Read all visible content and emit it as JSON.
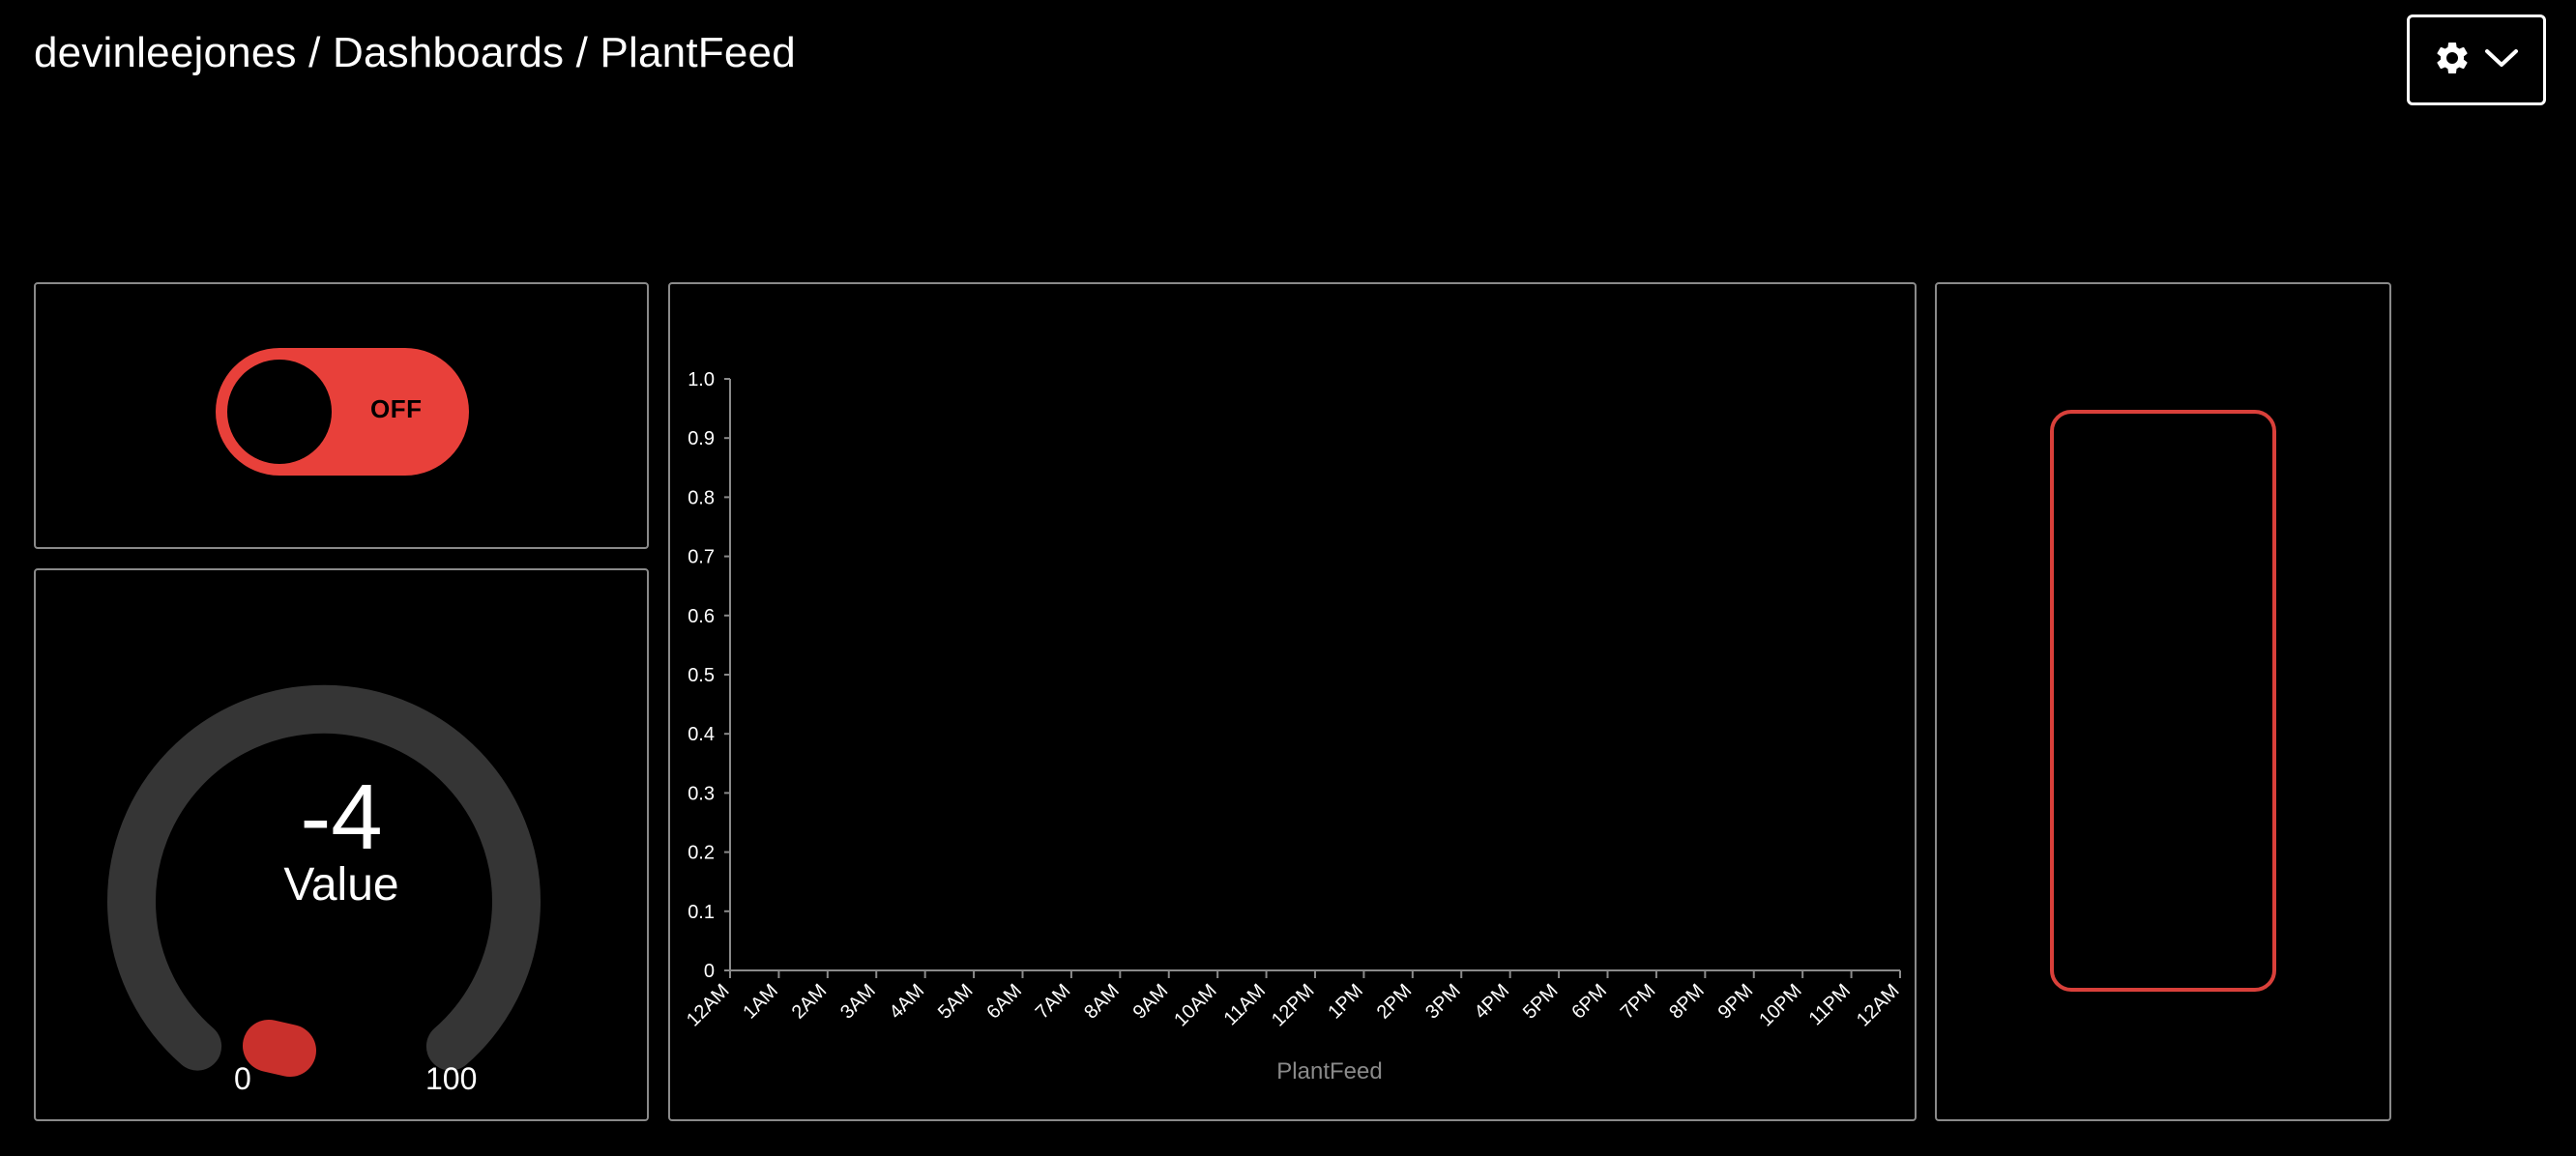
{
  "header": {
    "breadcrumb": "devinleejones / Dashboards / PlantFeed",
    "settings_icon": "gear-icon",
    "dropdown_icon": "chevron-down-icon"
  },
  "toggle": {
    "state_label": "OFF",
    "color": "#e8403a"
  },
  "gauge": {
    "value": "-4",
    "title": "Value",
    "min_label": "0",
    "max_label": "100",
    "track_color": "#353535",
    "marker_color": "#c9302c"
  },
  "indicator": {
    "border_color": "#d9403a"
  },
  "chart_data": {
    "type": "line",
    "title": "",
    "xlabel": "PlantFeed",
    "ylabel": "",
    "ylim": [
      0,
      1.0
    ],
    "y_ticks": [
      "0",
      "0.1",
      "0.2",
      "0.3",
      "0.4",
      "0.5",
      "0.6",
      "0.7",
      "0.8",
      "0.9",
      "1.0"
    ],
    "x_ticks": [
      "12AM",
      "1AM",
      "2AM",
      "3AM",
      "4AM",
      "5AM",
      "6AM",
      "7AM",
      "8AM",
      "9AM",
      "10AM",
      "11AM",
      "12PM",
      "1PM",
      "2PM",
      "3PM",
      "4PM",
      "5PM",
      "6PM",
      "7PM",
      "8PM",
      "9PM",
      "10PM",
      "11PM",
      "12AM"
    ],
    "series": [],
    "grid": false,
    "axis_color": "#8a8a8a"
  }
}
